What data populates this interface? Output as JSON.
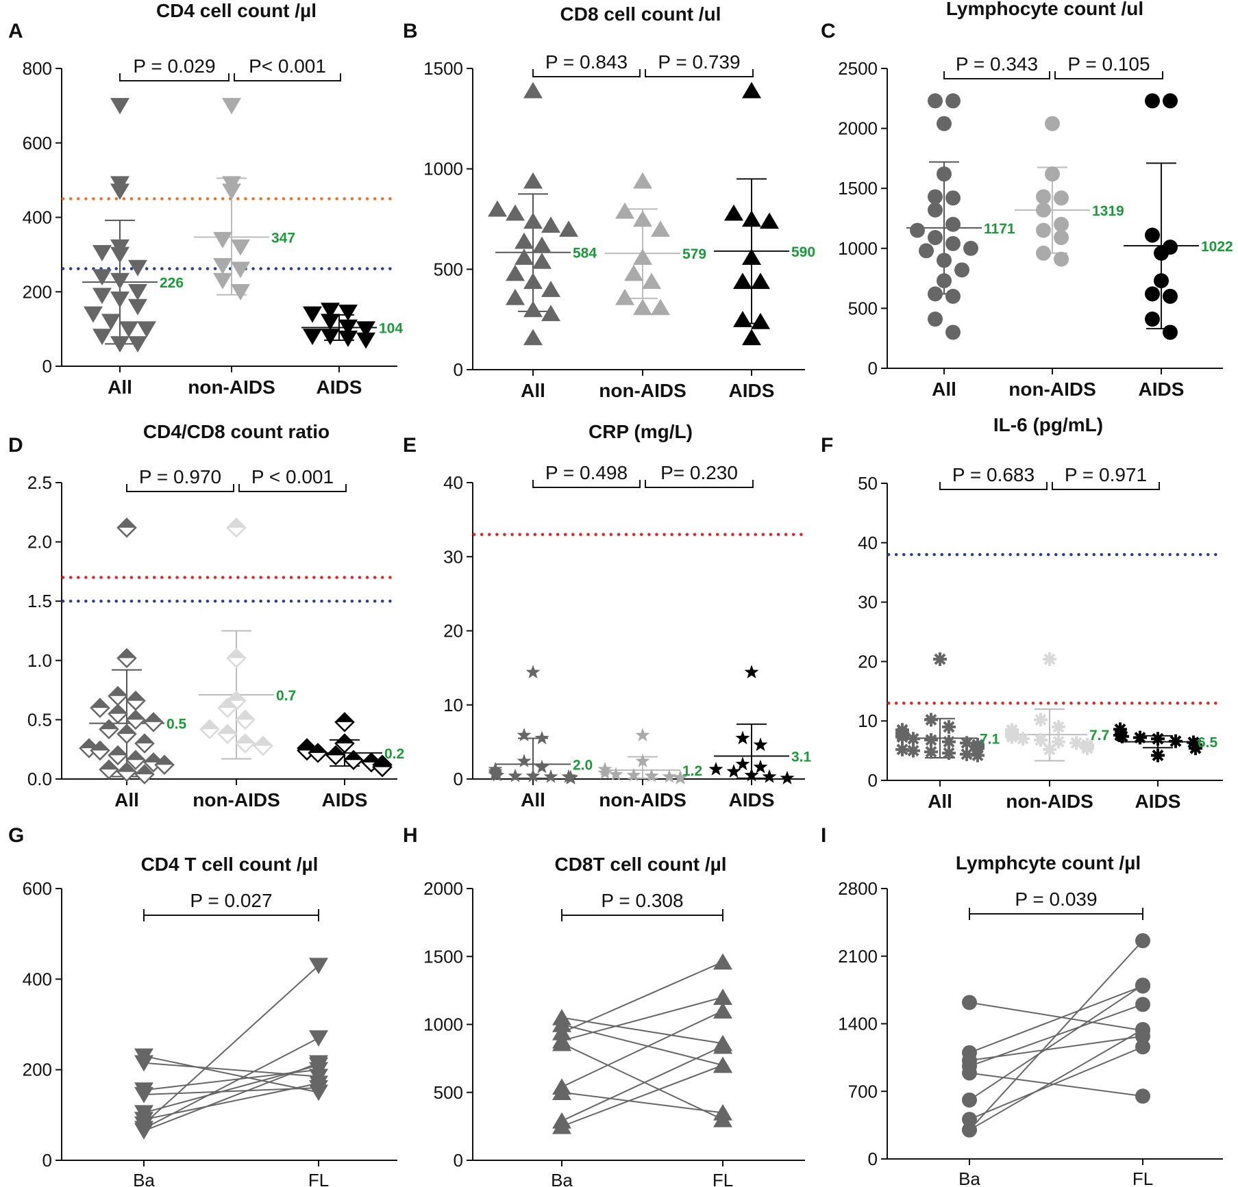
{
  "colors": {
    "all": "#666666",
    "nonaids": "#aaaaaa",
    "aids": "#000000",
    "mean": "#1a9a3a",
    "orange": "#e8742a",
    "blue": "#2d3e92",
    "red": "#e0262a"
  },
  "chart_data": [
    {
      "type": "scatter",
      "panel": "A",
      "title": "CD4 cell count /µl",
      "marker": "tri-down",
      "yticks": [
        "0",
        "200",
        "400",
        "600",
        "800"
      ],
      "ylim": [
        0,
        800
      ],
      "categories": [
        "All",
        "non-AIDS",
        "AIDS"
      ],
      "series": [
        {
          "name": "All",
          "values": [
            700,
            470,
            490,
            320,
            305,
            300,
            265,
            240,
            230,
            200,
            190,
            180,
            160,
            140,
            120,
            100,
            100,
            80,
            60,
            60
          ],
          "mean": 226,
          "sd_low": 60,
          "sd_high": 392,
          "mean_label": "226"
        },
        {
          "name": "non-AIDS",
          "values": [
            700,
            490,
            470,
            340,
            320,
            270,
            260,
            230,
            200
          ],
          "mean": 347,
          "sd_low": 192,
          "sd_high": 505,
          "mean_label": "347"
        },
        {
          "name": "AIDS",
          "values": [
            150,
            145,
            140,
            120,
            105,
            100,
            80,
            80,
            75,
            70
          ],
          "mean": 104,
          "sd_low": 70,
          "sd_high": 138,
          "mean_label": "104"
        }
      ],
      "reference_lines": [
        {
          "y": 450,
          "color": "orange"
        },
        {
          "y": 262,
          "color": "blue"
        }
      ],
      "comparisons": [
        {
          "from": "All",
          "to": "non-AIDS",
          "label": "P = 0.029"
        },
        {
          "from": "non-AIDS",
          "to": "AIDS",
          "label": "P< 0.001"
        }
      ]
    },
    {
      "type": "scatter",
      "panel": "B",
      "title": "CD8 cell count /ul",
      "marker": "tri-up",
      "yticks": [
        "0",
        "500",
        "1000",
        "1500"
      ],
      "ylim": [
        0,
        1500
      ],
      "categories": [
        "All",
        "non-AIDS",
        "AIDS"
      ],
      "series": [
        {
          "name": "All",
          "values": [
            1390,
            940,
            800,
            780,
            740,
            720,
            700,
            640,
            620,
            560,
            540,
            480,
            440,
            400,
            360,
            300,
            280,
            160
          ],
          "mean": 584,
          "sd_low": 290,
          "sd_high": 875,
          "mean_label": "584"
        },
        {
          "name": "non-AIDS",
          "values": [
            940,
            790,
            750,
            700,
            560,
            480,
            440,
            360,
            310,
            310
          ],
          "mean": 579,
          "sd_low": 355,
          "sd_high": 800,
          "mean_label": "579"
        },
        {
          "name": "AIDS",
          "values": [
            1390,
            780,
            750,
            740,
            560,
            440,
            440,
            250,
            240,
            160
          ],
          "mean": 590,
          "sd_low": 230,
          "sd_high": 950,
          "mean_label": "590"
        }
      ],
      "reference_lines": [],
      "comparisons": [
        {
          "from": "All",
          "to": "non-AIDS",
          "label": "P = 0.843"
        },
        {
          "from": "non-AIDS",
          "to": "AIDS",
          "label": "P = 0.739"
        }
      ]
    },
    {
      "type": "scatter",
      "panel": "C",
      "title": "Lymphocyte count /ul",
      "marker": "circle",
      "yticks": [
        "0",
        "500",
        "1000",
        "1500",
        "2000",
        "2500"
      ],
      "ylim": [
        0,
        2500
      ],
      "categories": [
        "All",
        "non-AIDS",
        "AIDS"
      ],
      "series": [
        {
          "name": "All",
          "values": [
            2230,
            2230,
            2040,
            1620,
            1430,
            1420,
            1320,
            1200,
            1150,
            1090,
            1040,
            1000,
            980,
            900,
            820,
            730,
            620,
            600,
            410,
            300
          ],
          "mean": 1171,
          "sd_low": 620,
          "sd_high": 1720,
          "mean_label": "1171"
        },
        {
          "name": "non-AIDS",
          "values": [
            2040,
            1620,
            1430,
            1420,
            1320,
            1200,
            1150,
            1090,
            960,
            910
          ],
          "mean": 1319,
          "sd_low": 960,
          "sd_high": 1675,
          "mean_label": "1319"
        },
        {
          "name": "AIDS",
          "values": [
            2230,
            2230,
            1110,
            1010,
            960,
            730,
            620,
            600,
            410,
            300
          ],
          "mean": 1022,
          "sd_low": 330,
          "sd_high": 1710,
          "mean_label": "1022"
        }
      ],
      "reference_lines": [],
      "comparisons": [
        {
          "from": "All",
          "to": "non-AIDS",
          "label": "P = 0.343"
        },
        {
          "from": "non-AIDS",
          "to": "AIDS",
          "label": "P = 0.105"
        }
      ]
    },
    {
      "type": "scatter",
      "panel": "D",
      "title": "CD4/CD8 count ratio",
      "marker": "diamond",
      "yticks": [
        "0.0",
        "0.5",
        "1.0",
        "1.5",
        "2.0",
        "2.5"
      ],
      "ylim": [
        0,
        2.5
      ],
      "categories": [
        "All",
        "non-AIDS",
        "AIDS"
      ],
      "series": [
        {
          "name": "All",
          "values": [
            2.12,
            1.02,
            0.7,
            0.66,
            0.6,
            0.55,
            0.5,
            0.48,
            0.42,
            0.38,
            0.3,
            0.26,
            0.24,
            0.2,
            0.16,
            0.14,
            0.12,
            0.08,
            0.06,
            0.04
          ],
          "mean": 0.47,
          "sd_low": 0.02,
          "sd_high": 0.92,
          "mean_label": "0.5"
        },
        {
          "name": "non-AIDS",
          "values": [
            2.12,
            1.02,
            0.66,
            0.6,
            0.5,
            0.42,
            0.38,
            0.3,
            0.28
          ],
          "mean": 0.71,
          "sd_low": 0.17,
          "sd_high": 1.25,
          "mean_label": "0.7"
        },
        {
          "name": "AIDS",
          "values": [
            0.48,
            0.3,
            0.26,
            0.24,
            0.22,
            0.2,
            0.16,
            0.14,
            0.12,
            0.1
          ],
          "mean": 0.22,
          "sd_low": 0.11,
          "sd_high": 0.33,
          "mean_label": "0.2"
        }
      ],
      "reference_lines": [
        {
          "y": 1.7,
          "color": "red"
        },
        {
          "y": 1.5,
          "color": "blue"
        }
      ],
      "comparisons": [
        {
          "from": "All",
          "to": "non-AIDS",
          "label": "P = 0.970"
        },
        {
          "from": "non-AIDS",
          "to": "AIDS",
          "label": "P < 0.001"
        }
      ]
    },
    {
      "type": "scatter",
      "panel": "E",
      "title": "CRP (mg/L)",
      "marker": "star",
      "yticks": [
        "0",
        "10",
        "20",
        "30",
        "40"
      ],
      "ylim": [
        0,
        40
      ],
      "categories": [
        "All",
        "non-AIDS",
        "AIDS"
      ],
      "series": [
        {
          "name": "All",
          "values": [
            14.4,
            5.9,
            5.5,
            2.4,
            1.6,
            1.3,
            1.0,
            0.8,
            0.6,
            0.5,
            0.4,
            0.4,
            0.3,
            0.3,
            0.2,
            0.2,
            0.1,
            0.1
          ],
          "mean": 2.0,
          "sd_low": 0.1,
          "sd_high": 5.5,
          "mean_label": "2.0"
        },
        {
          "name": "non-AIDS",
          "values": [
            5.9,
            2.4,
            1.3,
            0.8,
            0.6,
            0.5,
            0.4,
            0.3,
            0.2,
            0.1
          ],
          "mean": 1.2,
          "sd_low": 0.1,
          "sd_high": 3.0,
          "mean_label": "1.2"
        },
        {
          "name": "AIDS",
          "values": [
            14.4,
            5.5,
            4.6,
            2.0,
            1.6,
            1.3,
            1.0,
            0.5,
            0.3,
            0.1
          ],
          "mean": 3.1,
          "sd_low": 0.1,
          "sd_high": 7.4,
          "mean_label": "3.1"
        }
      ],
      "reference_lines": [
        {
          "y": 33,
          "color": "red"
        }
      ],
      "comparisons": [
        {
          "from": "All",
          "to": "non-AIDS",
          "label": "P = 0.498"
        },
        {
          "from": "non-AIDS",
          "to": "AIDS",
          "label": "P= 0.230"
        }
      ]
    },
    {
      "type": "scatter",
      "panel": "F",
      "title": "IL-6 (pg/mL)",
      "marker": "asterisk",
      "yticks": [
        "0",
        "10",
        "20",
        "30",
        "40",
        "50"
      ],
      "ylim": [
        0,
        50
      ],
      "categories": [
        "All",
        "non-AIDS",
        "AIDS"
      ],
      "series": [
        {
          "name": "All",
          "values": [
            20.4,
            10.2,
            9.0,
            8.5,
            8.0,
            7.6,
            7.3,
            7.0,
            6.8,
            6.5,
            6.3,
            6.0,
            5.8,
            5.6,
            5.4,
            5.2,
            5.0,
            4.8,
            4.6,
            4.4,
            4.2
          ],
          "mean": 7.1,
          "sd_low": 3.8,
          "sd_high": 10.4,
          "mean_label": "7.1"
        },
        {
          "name": "non-AIDS",
          "values": [
            20.4,
            10.2,
            9.0,
            8.5,
            8.0,
            7.6,
            7.3,
            7.0,
            6.8,
            6.5,
            6.3,
            6.0,
            5.8,
            5.6,
            5.4,
            5.2
          ],
          "mean": 7.7,
          "sd_low": 3.3,
          "sd_high": 12.0,
          "mean_label": "7.7"
        },
        {
          "name": "AIDS",
          "values": [
            8.6,
            7.6,
            7.4,
            7.2,
            7.0,
            6.6,
            6.4,
            6.0,
            5.4,
            4.2
          ],
          "mean": 6.5,
          "sd_low": 5.5,
          "sd_high": 7.5,
          "mean_label": "6.5"
        }
      ],
      "reference_lines": [
        {
          "y": 38,
          "color": "blue"
        },
        {
          "y": 13,
          "color": "red"
        }
      ],
      "comparisons": [
        {
          "from": "All",
          "to": "non-AIDS",
          "label": "P = 0.683"
        },
        {
          "from": "non-AIDS",
          "to": "AIDS",
          "label": "P = 0.971"
        }
      ]
    },
    {
      "type": "line",
      "panel": "G",
      "title": "CD4 T cell count /µl",
      "marker": "tri-down",
      "yticks": [
        "0",
        "200",
        "400",
        "600"
      ],
      "ylim": [
        0,
        600
      ],
      "categories": [
        "Ba",
        "FL"
      ],
      "pairs": [
        [
          230,
          150
        ],
        [
          215,
          185
        ],
        [
          155,
          200
        ],
        [
          145,
          160
        ],
        [
          105,
          210
        ],
        [
          90,
          170
        ],
        [
          80,
          430
        ],
        [
          70,
          270
        ],
        [
          65,
          215
        ]
      ],
      "comparison_label": "P = 0.027"
    },
    {
      "type": "line",
      "panel": "H",
      "title": "CD8T cell count /µl",
      "marker": "tri-up",
      "yticks": [
        "0",
        "500",
        "1000",
        "1500",
        "2000"
      ],
      "ylim": [
        0,
        2000
      ],
      "categories": [
        "Ba",
        "FL"
      ],
      "pairs": [
        [
          1050,
          860
        ],
        [
          1000,
          700
        ],
        [
          940,
          1460
        ],
        [
          880,
          1200
        ],
        [
          860,
          300
        ],
        [
          540,
          1100
        ],
        [
          500,
          350
        ],
        [
          290,
          840
        ],
        [
          250,
          700
        ]
      ],
      "comparison_label": "P = 0.308"
    },
    {
      "type": "line",
      "panel": "I",
      "title": "Lymphcyte count /µl",
      "marker": "circle",
      "yticks": [
        "0",
        "700",
        "1400",
        "2100",
        "2800"
      ],
      "ylim": [
        0,
        2800
      ],
      "categories": [
        "Ba",
        "FL"
      ],
      "pairs": [
        [
          1620,
          1330
        ],
        [
          1100,
          1790
        ],
        [
          1020,
          1270
        ],
        [
          960,
          1600
        ],
        [
          890,
          650
        ],
        [
          610,
          1800
        ],
        [
          410,
          1160
        ],
        [
          300,
          1340
        ],
        [
          300,
          2260
        ]
      ],
      "comparison_label": "P = 0.039"
    }
  ]
}
